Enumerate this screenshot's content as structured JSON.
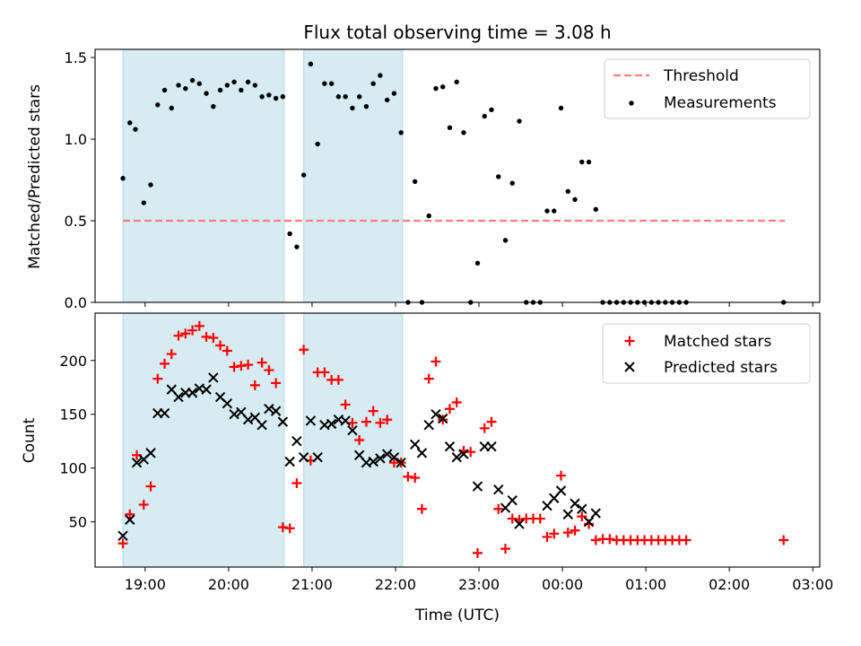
{
  "figure_title": "Flux total observing time = 3.08 h",
  "colors": {
    "shade": "#add8e6",
    "measurements": "#000000",
    "threshold": "#ff7f7f",
    "matched": "#ff0000",
    "predicted": "#000000"
  },
  "chart_data": [
    {
      "type": "scatter",
      "title": "Flux total observing time = 3.08 h",
      "ylabel": "Matched/Predicted stars",
      "xlabel": "",
      "xlim": [
        "18:24",
        "03:05"
      ],
      "ylim": [
        0,
        1.55
      ],
      "yticks": [
        0.0,
        0.5,
        1.0,
        1.5
      ],
      "ytick_labels": [
        "0.0",
        "0.5",
        "1.0",
        "1.5"
      ],
      "legend_position": "upper right",
      "shaded_intervals": [
        [
          "18:44",
          "20:40"
        ],
        [
          "20:54",
          "22:05"
        ]
      ],
      "threshold": {
        "name": "Threshold",
        "value": 0.5,
        "x_start": "18:44",
        "x_end": "02:40"
      },
      "series": [
        {
          "name": "Measurements",
          "x": [
            "18:44",
            "18:49",
            "18:53",
            "18:59",
            "19:04",
            "19:09",
            "19:14",
            "19:19",
            "19:24",
            "19:29",
            "19:34",
            "19:39",
            "19:44",
            "19:49",
            "19:54",
            "19:59",
            "20:04",
            "20:09",
            "20:14",
            "20:19",
            "20:24",
            "20:29",
            "20:34",
            "20:39",
            "20:44",
            "20:49",
            "20:54",
            "20:59",
            "21:04",
            "21:09",
            "21:14",
            "21:19",
            "21:24",
            "21:29",
            "21:34",
            "21:39",
            "21:44",
            "21:49",
            "21:54",
            "21:59",
            "22:04",
            "22:09",
            "22:14",
            "22:19",
            "22:24",
            "22:29",
            "22:34",
            "22:39",
            "22:44",
            "22:49",
            "22:54",
            "22:59",
            "23:04",
            "23:09",
            "23:14",
            "23:19",
            "23:24",
            "23:29",
            "23:34",
            "23:39",
            "23:44",
            "23:49",
            "23:54",
            "23:59",
            "00:04",
            "00:09",
            "00:14",
            "00:19",
            "00:24",
            "00:29",
            "00:34",
            "00:39",
            "00:44",
            "00:49",
            "00:54",
            "00:59",
            "01:04",
            "01:09",
            "01:14",
            "01:19",
            "01:24",
            "01:29",
            "02:39"
          ],
          "y": [
            0.76,
            1.1,
            1.06,
            0.61,
            0.72,
            1.21,
            1.3,
            1.19,
            1.33,
            1.31,
            1.36,
            1.34,
            1.28,
            1.2,
            1.3,
            1.33,
            1.35,
            1.3,
            1.35,
            1.33,
            1.26,
            1.27,
            1.25,
            1.26,
            0.42,
            0.34,
            0.78,
            1.46,
            0.97,
            1.34,
            1.34,
            1.26,
            1.26,
            1.19,
            1.26,
            1.2,
            1.34,
            1.39,
            1.24,
            1.28,
            1.04,
            0.0,
            0.74,
            0.0,
            0.53,
            1.31,
            1.32,
            1.07,
            1.35,
            1.04,
            0.0,
            0.24,
            1.14,
            1.18,
            0.77,
            0.38,
            0.73,
            1.11,
            0.0,
            0.0,
            0.0,
            0.56,
            0.56,
            1.19,
            0.68,
            0.63,
            0.86,
            0.86,
            0.57,
            0.0,
            0.0,
            0.0,
            0.0,
            0.0,
            0.0,
            0.0,
            0.0,
            0.0,
            0.0,
            0.0,
            0.0,
            0.0,
            0.0
          ]
        }
      ]
    },
    {
      "type": "scatter",
      "title": "",
      "ylabel": "Count",
      "xlabel": "Time (UTC)",
      "xlim": [
        "18:24",
        "03:05"
      ],
      "ylim": [
        8,
        244
      ],
      "yticks": [
        50,
        100,
        150,
        200
      ],
      "ytick_labels": [
        "50",
        "100",
        "150",
        "200"
      ],
      "xticks": [
        "19:00",
        "20:00",
        "21:00",
        "22:00",
        "23:00",
        "00:00",
        "01:00",
        "02:00",
        "03:00"
      ],
      "xtick_labels": [
        "19:00",
        "20:00",
        "21:00",
        "22:00",
        "23:00",
        "00:00",
        "01:00",
        "02:00",
        "03:00"
      ],
      "legend_position": "upper right",
      "shaded_intervals": [
        [
          "18:44",
          "20:40"
        ],
        [
          "20:54",
          "22:05"
        ]
      ],
      "series": [
        {
          "name": "Matched stars",
          "marker": "+",
          "x": [
            "18:44",
            "18:49",
            "18:54",
            "18:59",
            "19:04",
            "19:09",
            "19:14",
            "19:19",
            "19:24",
            "19:29",
            "19:34",
            "19:39",
            "19:44",
            "19:49",
            "19:54",
            "19:59",
            "20:04",
            "20:09",
            "20:14",
            "20:19",
            "20:24",
            "20:29",
            "20:34",
            "20:39",
            "20:44",
            "20:49",
            "20:54",
            "20:59",
            "21:04",
            "21:09",
            "21:14",
            "21:19",
            "21:24",
            "21:29",
            "21:34",
            "21:39",
            "21:44",
            "21:49",
            "21:54",
            "21:59",
            "22:04",
            "22:09",
            "22:14",
            "22:19",
            "22:24",
            "22:29",
            "22:34",
            "22:39",
            "22:44",
            "22:49",
            "22:54",
            "22:59",
            "23:04",
            "23:09",
            "23:14",
            "23:19",
            "23:24",
            "23:29",
            "23:34",
            "23:39",
            "23:44",
            "23:49",
            "23:54",
            "23:59",
            "00:04",
            "00:09",
            "00:14",
            "00:19",
            "00:24",
            "00:29",
            "00:34",
            "00:39",
            "00:44",
            "00:49",
            "00:54",
            "00:59",
            "01:04",
            "01:09",
            "01:14",
            "01:19",
            "01:24",
            "01:29",
            "02:39"
          ],
          "y": [
            30,
            57,
            112,
            66,
            83,
            183,
            197,
            206,
            223,
            225,
            228,
            232,
            222,
            221,
            214,
            209,
            194,
            195,
            196,
            177,
            198,
            191,
            179,
            45,
            44,
            86,
            210,
            107,
            189,
            189,
            182,
            182,
            159,
            142,
            126,
            143,
            153,
            142,
            145,
            105,
            105,
            92,
            91,
            62,
            183,
            199,
            145,
            155,
            161,
            116,
            115,
            21,
            137,
            143,
            62,
            25,
            53,
            52,
            53,
            53,
            53,
            36,
            39,
            93,
            40,
            42,
            55,
            48,
            33,
            34,
            34,
            33,
            33,
            33,
            33,
            33,
            33,
            33,
            33,
            33,
            33,
            33,
            33
          ]
        },
        {
          "name": "Predicted stars",
          "marker": "x",
          "x": [
            "18:44",
            "18:49",
            "18:54",
            "18:59",
            "19:04",
            "19:09",
            "19:14",
            "19:19",
            "19:24",
            "19:29",
            "19:34",
            "19:39",
            "19:44",
            "19:49",
            "19:54",
            "19:59",
            "20:04",
            "20:09",
            "20:14",
            "20:19",
            "20:24",
            "20:29",
            "20:34",
            "20:39",
            "20:44",
            "20:49",
            "20:54",
            "20:59",
            "21:04",
            "21:09",
            "21:14",
            "21:19",
            "21:24",
            "21:29",
            "21:34",
            "21:39",
            "21:44",
            "21:49",
            "21:54",
            "21:59",
            "22:04",
            "22:09",
            "22:14",
            "22:19",
            "22:24",
            "22:29",
            "22:34",
            "22:39",
            "22:44",
            "22:49",
            "22:54",
            "22:59",
            "23:04",
            "23:09",
            "23:14",
            "23:19",
            "23:24",
            "23:29",
            "23:34",
            "23:39",
            "23:44",
            "23:49",
            "23:54",
            "23:59",
            "00:04",
            "00:09",
            "00:14",
            "00:19",
            "00:24",
            "00:29",
            "00:34"
          ],
          "y": [
            37,
            52,
            105,
            108,
            114,
            151,
            151,
            173,
            166,
            170,
            170,
            174,
            173,
            184,
            166,
            160,
            150,
            152,
            145,
            147,
            140,
            155,
            153,
            143,
            106,
            125,
            110,
            144,
            110,
            140,
            141,
            145,
            144,
            135,
            112,
            105,
            106,
            109,
            113,
            110,
            105,
            null,
            122,
            114,
            140,
            150,
            146,
            120,
            110,
            113,
            null,
            83,
            120,
            120,
            80,
            63,
            70,
            48,
            null,
            null,
            null,
            65,
            72,
            79,
            57,
            67,
            62,
            50,
            58,
            null,
            null
          ]
        }
      ]
    }
  ]
}
